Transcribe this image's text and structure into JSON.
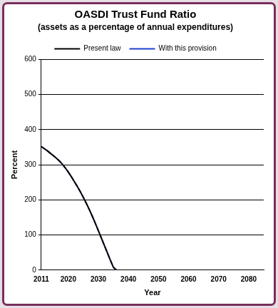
{
  "chart_data": {
    "type": "line",
    "title": "OASDI Trust Fund Ratio",
    "subtitle": "(assets as a percentage of annual expenditures)",
    "x_label": "Year",
    "y_label": "Percent",
    "x": [
      2011,
      2012,
      2013,
      2014,
      2015,
      2016,
      2017,
      2018,
      2019,
      2020,
      2021,
      2022,
      2023,
      2024,
      2025,
      2026,
      2027,
      2028,
      2029,
      2030,
      2031,
      2032,
      2033,
      2034,
      2035,
      2036
    ],
    "series": [
      {
        "name": "Present law",
        "color": "#000000",
        "line_style": "solid",
        "values": [
          352,
          346,
          340,
          333,
          326,
          319,
          311,
          302,
          291,
          279,
          266,
          252,
          238,
          223,
          207,
          190,
          172,
          153,
          133,
          112,
          91,
          70,
          49,
          28,
          8,
          0
        ]
      },
      {
        "name": "With this provision",
        "color": "#1f3fcf",
        "line_style": "dashed",
        "values": [
          352,
          346,
          340,
          333,
          326,
          319,
          311,
          302,
          291,
          279,
          266,
          252,
          238,
          223,
          207,
          190,
          172,
          153,
          133,
          112,
          91,
          70,
          49,
          28,
          8,
          0
        ]
      }
    ],
    "xlim": [
      2011,
      2085
    ],
    "xticks": [
      2011,
      2020,
      2030,
      2040,
      2050,
      2060,
      2070,
      2080
    ],
    "ylim": [
      0,
      600
    ],
    "yticks": [
      0,
      100,
      200,
      300,
      400,
      500,
      600
    ],
    "grid": true,
    "legend": "top"
  }
}
